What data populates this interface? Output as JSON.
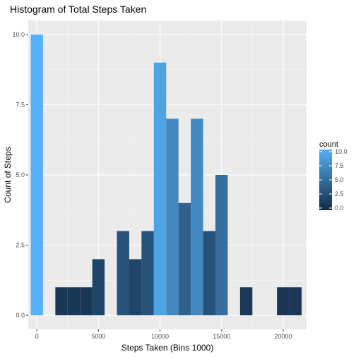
{
  "chart_data": {
    "type": "bar",
    "title": "Histogram of Total Steps Taken",
    "xlabel": "Steps Taken (Bins 1000)",
    "ylabel": "Count of Steps",
    "bin_width": 1000,
    "bins": [
      {
        "center": 0,
        "count": 10
      },
      {
        "center": 2000,
        "count": 1
      },
      {
        "center": 3000,
        "count": 1
      },
      {
        "center": 4000,
        "count": 1
      },
      {
        "center": 5000,
        "count": 2
      },
      {
        "center": 7000,
        "count": 3
      },
      {
        "center": 8000,
        "count": 2
      },
      {
        "center": 9000,
        "count": 3
      },
      {
        "center": 10000,
        "count": 9
      },
      {
        "center": 11000,
        "count": 7
      },
      {
        "center": 12000,
        "count": 4
      },
      {
        "center": 13000,
        "count": 7
      },
      {
        "center": 14000,
        "count": 3
      },
      {
        "center": 15000,
        "count": 5
      },
      {
        "center": 17000,
        "count": 1
      },
      {
        "center": 20000,
        "count": 1
      },
      {
        "center": 21000,
        "count": 1
      }
    ],
    "xlim": [
      -700,
      21900
    ],
    "ylim": [
      -0.5,
      10.5
    ],
    "x_ticks": [
      {
        "value": 0,
        "label": "0"
      },
      {
        "value": 5000,
        "label": "5000"
      },
      {
        "value": 10000,
        "label": "10000"
      },
      {
        "value": 15000,
        "label": "15000"
      },
      {
        "value": 20000,
        "label": "20000"
      }
    ],
    "y_ticks": [
      {
        "value": 0,
        "label": "0.0"
      },
      {
        "value": 2.5,
        "label": "2.5"
      },
      {
        "value": 5,
        "label": "5.0"
      },
      {
        "value": 7.5,
        "label": "7.5"
      },
      {
        "value": 10,
        "label": "10.0"
      }
    ],
    "grid": true,
    "panel_background": "#ebebeb",
    "legend": {
      "title": "count",
      "position": "right",
      "ticks": [
        {
          "value": 0,
          "label": "0.0"
        },
        {
          "value": 2.5,
          "label": "2.5"
        },
        {
          "value": 5,
          "label": "5.0"
        },
        {
          "value": 7.5,
          "label": "7.5"
        },
        {
          "value": 10,
          "label": "10.0"
        }
      ],
      "colors": {
        "low": "#132b43",
        "high": "#56b1f7"
      }
    }
  }
}
